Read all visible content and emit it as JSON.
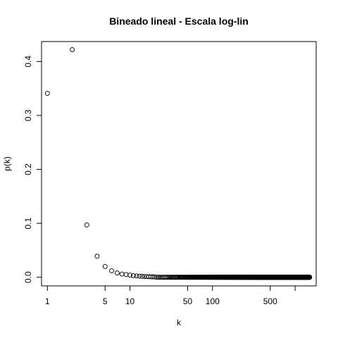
{
  "chart_data": {
    "type": "scatter",
    "title": "Bineado lineal - Escala log-lin",
    "xlabel": "k",
    "ylabel": "p(k)",
    "xscale": "log",
    "yscale": "linear",
    "grid": false,
    "legend": "none",
    "marker": "open-circle",
    "xlim": [
      0.85,
      1800
    ],
    "ylim": [
      -0.016,
      0.437
    ],
    "xticks": [
      1,
      5,
      10,
      50,
      100,
      500,
      1000
    ],
    "xtick_labels": [
      "1",
      "5",
      "10",
      "50",
      "100",
      "500",
      ""
    ],
    "yticks": [
      0.0,
      0.1,
      0.2,
      0.3,
      0.4
    ],
    "ytick_labels": [
      "0.0",
      "0.1",
      "0.2",
      "0.3",
      "0.4"
    ],
    "series": [
      {
        "x_range": [
          1,
          1500
        ],
        "x_step": 1,
        "y_tail_value": 0.0,
        "points": [
          {
            "x": 1,
            "y": 0.341
          },
          {
            "x": 2,
            "y": 0.422
          },
          {
            "x": 3,
            "y": 0.097
          },
          {
            "x": 4,
            "y": 0.039
          },
          {
            "x": 5,
            "y": 0.02
          },
          {
            "x": 6,
            "y": 0.012
          },
          {
            "x": 7,
            "y": 0.008
          },
          {
            "x": 8,
            "y": 0.006
          },
          {
            "x": 9,
            "y": 0.005
          },
          {
            "x": 10,
            "y": 0.004
          },
          {
            "x": 11,
            "y": 0.003
          },
          {
            "x": 12,
            "y": 0.0025
          },
          {
            "x": 13,
            "y": 0.002
          },
          {
            "x": 14,
            "y": 0.0017
          },
          {
            "x": 15,
            "y": 0.0014
          },
          {
            "x": 16,
            "y": 0.0012
          },
          {
            "x": 17,
            "y": 0.001
          },
          {
            "x": 18,
            "y": 0.0009
          },
          {
            "x": 19,
            "y": 0.0008
          },
          {
            "x": 20,
            "y": 0.0007
          }
        ]
      }
    ]
  }
}
